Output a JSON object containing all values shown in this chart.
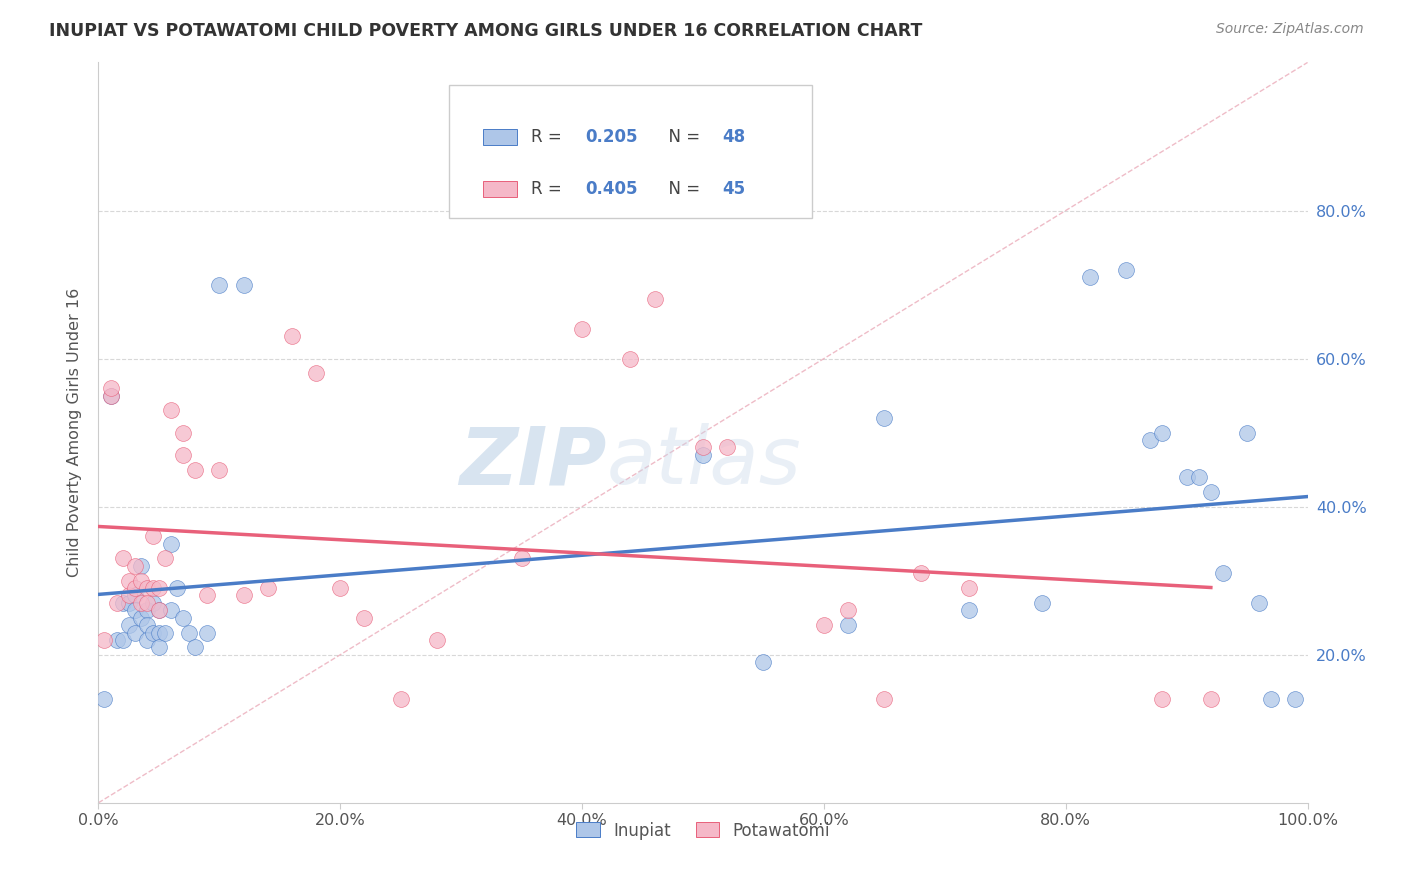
{
  "title": "INUPIAT VS POTAWATOMI CHILD POVERTY AMONG GIRLS UNDER 16 CORRELATION CHART",
  "source": "Source: ZipAtlas.com",
  "ylabel": "Child Poverty Among Girls Under 16",
  "watermark_zip": "ZIP",
  "watermark_atlas": "atlas",
  "inupiat_R": "0.205",
  "inupiat_N": "48",
  "potawatomi_R": "0.405",
  "potawatomi_N": "45",
  "inupiat_color": "#aec6e8",
  "inupiat_line_color": "#4a7cc7",
  "potawatomi_color": "#f5b8c8",
  "potawatomi_line_color": "#e8607a",
  "diagonal_color": "#e8a0b0",
  "background_color": "#ffffff",
  "grid_color": "#d8d8d8",
  "xlim": [
    0,
    1.0
  ],
  "ylim": [
    0,
    1.0
  ],
  "xticks": [
    0.0,
    0.2,
    0.4,
    0.6,
    0.8,
    1.0
  ],
  "yticks_right": [
    0.2,
    0.4,
    0.6,
    0.8
  ],
  "xticklabels": [
    "0.0%",
    "20.0%",
    "40.0%",
    "60.0%",
    "80.0%",
    "100.0%"
  ],
  "yticklabels_right": [
    "20.0%",
    "40.0%",
    "60.0%",
    "80.0%"
  ],
  "inupiat_x": [
    0.005,
    0.01,
    0.015,
    0.02,
    0.02,
    0.025,
    0.025,
    0.03,
    0.03,
    0.03,
    0.035,
    0.035,
    0.04,
    0.04,
    0.04,
    0.045,
    0.045,
    0.05,
    0.05,
    0.05,
    0.055,
    0.06,
    0.06,
    0.065,
    0.07,
    0.075,
    0.08,
    0.09,
    0.1,
    0.12,
    0.5,
    0.55,
    0.62,
    0.65,
    0.72,
    0.78,
    0.82,
    0.85,
    0.87,
    0.88,
    0.9,
    0.91,
    0.92,
    0.93,
    0.95,
    0.96,
    0.97,
    0.99
  ],
  "inupiat_y": [
    0.14,
    0.55,
    0.22,
    0.22,
    0.27,
    0.27,
    0.24,
    0.28,
    0.26,
    0.23,
    0.25,
    0.32,
    0.26,
    0.24,
    0.22,
    0.23,
    0.27,
    0.26,
    0.23,
    0.21,
    0.23,
    0.35,
    0.26,
    0.29,
    0.25,
    0.23,
    0.21,
    0.23,
    0.7,
    0.7,
    0.47,
    0.19,
    0.24,
    0.52,
    0.26,
    0.27,
    0.71,
    0.72,
    0.49,
    0.5,
    0.44,
    0.44,
    0.42,
    0.31,
    0.5,
    0.27,
    0.14,
    0.14
  ],
  "potawatomi_x": [
    0.005,
    0.01,
    0.01,
    0.015,
    0.02,
    0.025,
    0.025,
    0.03,
    0.03,
    0.035,
    0.035,
    0.04,
    0.04,
    0.045,
    0.045,
    0.05,
    0.05,
    0.055,
    0.06,
    0.07,
    0.07,
    0.08,
    0.09,
    0.1,
    0.12,
    0.14,
    0.16,
    0.18,
    0.2,
    0.22,
    0.25,
    0.28,
    0.35,
    0.4,
    0.44,
    0.46,
    0.5,
    0.52,
    0.6,
    0.62,
    0.65,
    0.68,
    0.72,
    0.88,
    0.92
  ],
  "potawatomi_y": [
    0.22,
    0.55,
    0.56,
    0.27,
    0.33,
    0.28,
    0.3,
    0.29,
    0.32,
    0.3,
    0.27,
    0.29,
    0.27,
    0.36,
    0.29,
    0.29,
    0.26,
    0.33,
    0.53,
    0.47,
    0.5,
    0.45,
    0.28,
    0.45,
    0.28,
    0.29,
    0.63,
    0.58,
    0.29,
    0.25,
    0.14,
    0.22,
    0.33,
    0.64,
    0.6,
    0.68,
    0.48,
    0.48,
    0.24,
    0.26,
    0.14,
    0.31,
    0.29,
    0.14,
    0.14
  ]
}
